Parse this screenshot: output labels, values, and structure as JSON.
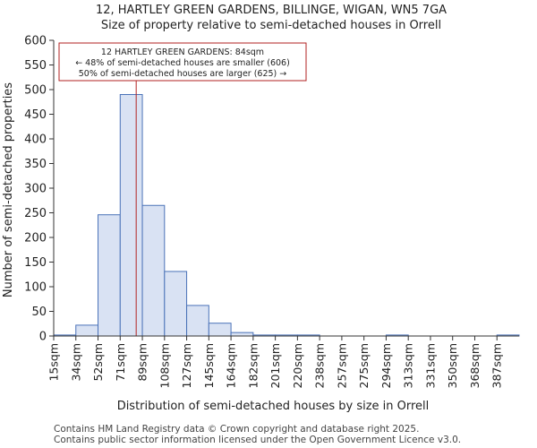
{
  "chart_data": {
    "type": "bar",
    "title": "12, HARTLEY GREEN GARDENS, BILLINGE, WIGAN, WN5 7GA",
    "subtitle": "Size of property relative to semi-detached houses in Orrell",
    "xlabel": "Distribution of semi-detached houses by size in Orrell",
    "ylabel": "Number of semi-detached properties",
    "ylim": [
      0,
      600
    ],
    "yticks": [
      "0",
      "50",
      "100",
      "150",
      "200",
      "250",
      "300",
      "350",
      "400",
      "450",
      "500",
      "550",
      "600"
    ],
    "categories": [
      "15sqm",
      "34sqm",
      "52sqm",
      "71sqm",
      "89sqm",
      "108sqm",
      "127sqm",
      "145sqm",
      "164sqm",
      "182sqm",
      "201sqm",
      "220sqm",
      "238sqm",
      "257sqm",
      "275sqm",
      "294sqm",
      "313sqm",
      "331sqm",
      "350sqm",
      "368sqm",
      "387sqm"
    ],
    "values": [
      2,
      22,
      246,
      490,
      265,
      131,
      62,
      26,
      7,
      2,
      2,
      2,
      0,
      0,
      0,
      2,
      0,
      0,
      0,
      0,
      2
    ],
    "marker_value": 84,
    "marker_color": "#b22222",
    "bar_fill": "#d9e2f3",
    "bar_edge": "#4a72b8",
    "annotation": {
      "line1": "12 HARTLEY GREEN GARDENS: 84sqm",
      "line2": "← 48% of semi-detached houses are smaller (606)",
      "line3": "50% of semi-detached houses are larger (625) →"
    }
  },
  "footer": {
    "line1": "Contains HM Land Registry data © Crown copyright and database right 2025.",
    "line2": "Contains public sector information licensed under the Open Government Licence v3.0."
  }
}
